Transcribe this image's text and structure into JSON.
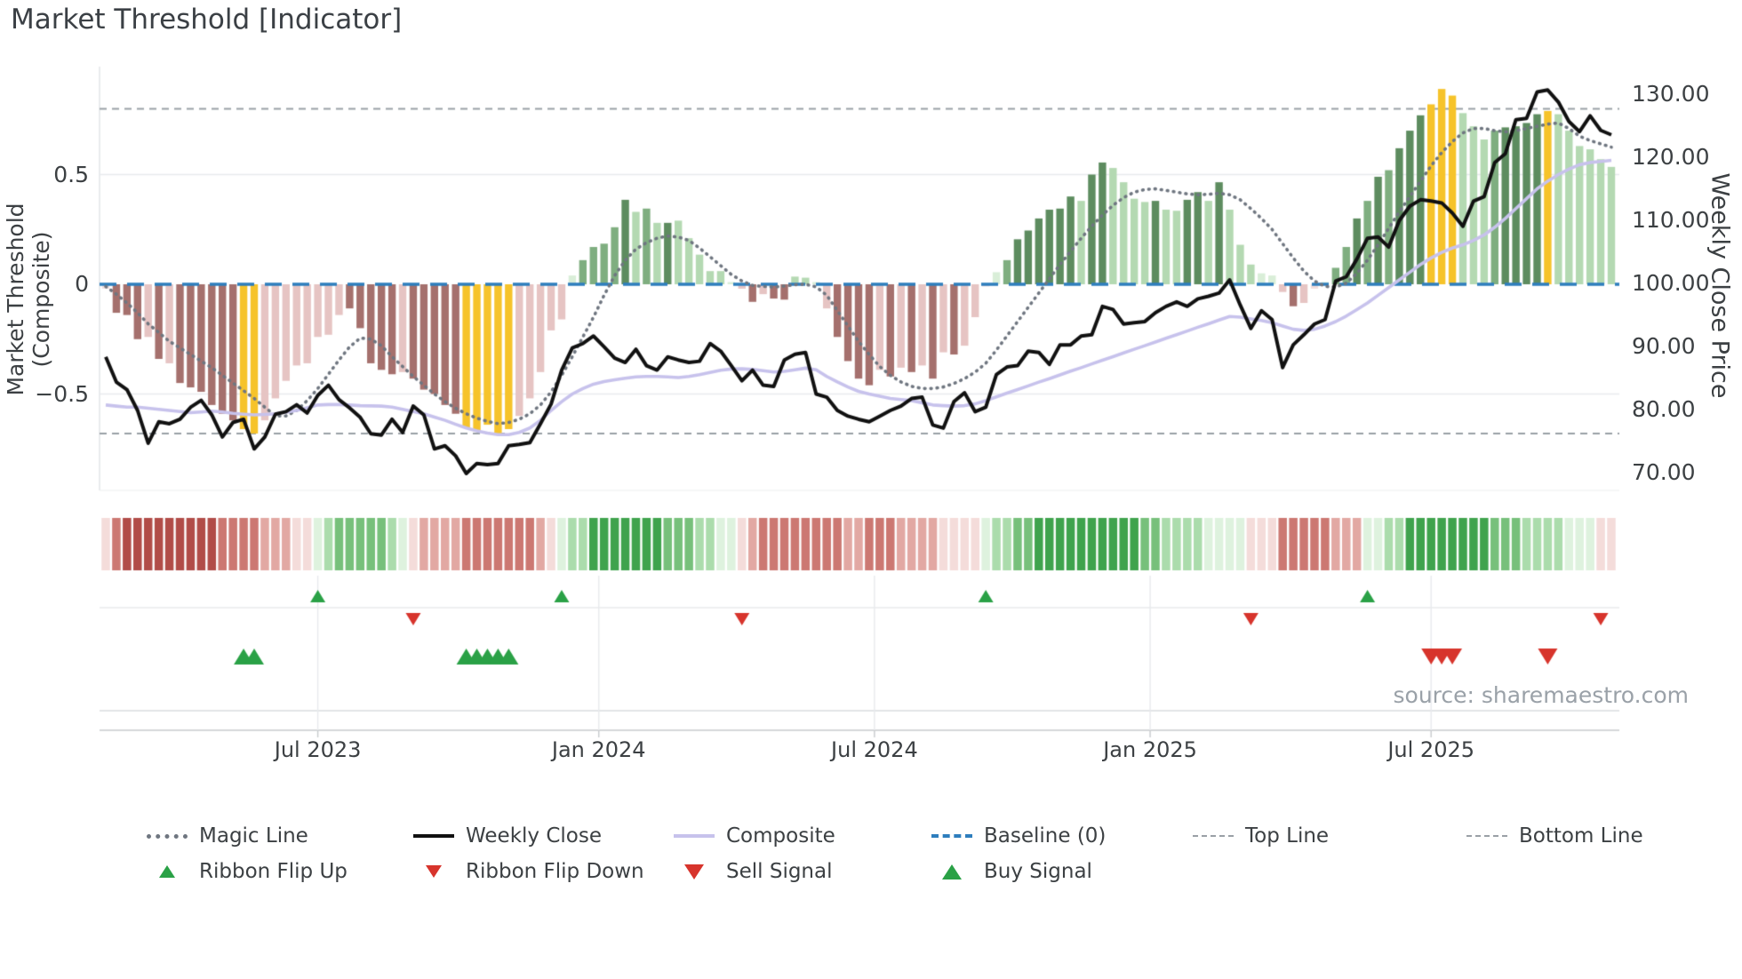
{
  "title": "Market Threshold [Indicator]",
  "source": "source: sharemaestro.com",
  "axes": {
    "left_label": "Market Threshold (Composite)",
    "right_label": "Weekly Close Price",
    "left_ticks": [
      {
        "value": 0.5,
        "label": "0.5"
      },
      {
        "value": 0.0,
        "label": "0"
      },
      {
        "value": -0.5,
        "label": "−0.5"
      }
    ],
    "right_ticks": [
      {
        "value": 130,
        "label": "130.00"
      },
      {
        "value": 120,
        "label": "120.00"
      },
      {
        "value": 110,
        "label": "110.00"
      },
      {
        "value": 100,
        "label": "100.00"
      },
      {
        "value": 90,
        "label": "90.00"
      },
      {
        "value": 80,
        "label": "80.00"
      },
      {
        "value": 70,
        "label": "70.00"
      }
    ],
    "x_ticks": [
      {
        "week": 20,
        "label": "Jul 2023"
      },
      {
        "week": 46.5,
        "label": "Jan 2024"
      },
      {
        "week": 72.5,
        "label": "Jul 2024"
      },
      {
        "week": 98.5,
        "label": "Jan 2025"
      },
      {
        "week": 125,
        "label": "Jul 2025"
      }
    ]
  },
  "legend": {
    "row1": [
      {
        "name": "magic-line",
        "label": "Magic Line",
        "swatch": "dotted-line",
        "color": "#6f7680"
      },
      {
        "name": "weekly-close",
        "label": "Weekly Close",
        "swatch": "solid-line",
        "color": "#111111"
      },
      {
        "name": "composite",
        "label": "Composite",
        "swatch": "solid-line",
        "color": "#c7c2ec"
      },
      {
        "name": "baseline",
        "label": "Baseline (0)",
        "swatch": "dashed-line",
        "color": "#2e7ebd"
      },
      {
        "name": "top-line",
        "label": "Top Line",
        "swatch": "dashes-small",
        "color": "#9aa0a6"
      },
      {
        "name": "bottom-line",
        "label": "Bottom Line",
        "swatch": "dashes-small",
        "color": "#9aa0a6"
      }
    ],
    "row2": [
      {
        "name": "ribbon-flip-up",
        "label": "Ribbon Flip Up",
        "swatch": "tri-up-small",
        "color": "#2aa146"
      },
      {
        "name": "ribbon-flip-down",
        "label": "Ribbon Flip Down",
        "swatch": "tri-down-small",
        "color": "#d7342c"
      },
      {
        "name": "sell-signal",
        "label": "Sell Signal",
        "swatch": "tri-down",
        "color": "#d7342c"
      },
      {
        "name": "buy-signal",
        "label": "Buy Signal",
        "swatch": "tri-up",
        "color": "#2aa146"
      }
    ]
  },
  "colors": {
    "bar_styles": {
      "d": "#a5706d",
      "l": "#e6c4c3",
      "p": "#f2dedd",
      "y": "#f6c32a",
      "G": "#5d8c5f",
      "g": "#7fae80",
      "lg": "#b4d9b2",
      "pg": "#d9eed8"
    },
    "ribbon_styles": {
      "R3": "#b14c48",
      "R2": "#cc7872",
      "R1": "#e2a8a3",
      "R0": "#f4dcda",
      "G3": "#3fa34d",
      "G2": "#77c07b",
      "G1": "#abdcac",
      "G0": "#def2de"
    },
    "weekly_close": "#111111",
    "composite_line": "#c7c2ec",
    "magic_line": "#6f7680",
    "baseline": "#2e7ebd",
    "threshold_lines": "#9aa0a6",
    "grid": "#e8eaed",
    "axis_line": "#c7cacd",
    "buy": "#2aa146",
    "sell": "#d7342c"
  },
  "chart_data": {
    "type": "bar",
    "subtype": "combo bar+line indicator panel, weekly data Feb 2023 - Nov 2025",
    "n_weeks": 143,
    "title": "Market Threshold [Indicator]",
    "xlabel": "",
    "ylabel_left": "Market Threshold (Composite)",
    "ylabel_right": "Weekly Close Price",
    "ylim_left": [
      -1.0,
      1.0
    ],
    "ylim_right": [
      60,
      140
    ],
    "grid": "horizontal light, vertical only in signal panel",
    "legend_position": "bottom, two rows",
    "thresholds": {
      "baseline": 0,
      "top_line": 0.8,
      "bottom_line": -0.68
    },
    "x_tick_labels": [
      "Jul 2023",
      "Jan 2024",
      "Jul 2024",
      "Jan 2025",
      "Jul 2025"
    ],
    "composite_bars": [
      -0.02,
      -0.13,
      -0.14,
      -0.25,
      -0.24,
      -0.34,
      -0.36,
      -0.45,
      -0.47,
      -0.49,
      -0.55,
      -0.59,
      -0.62,
      -0.66,
      -0.68,
      -0.62,
      -0.52,
      -0.44,
      -0.37,
      -0.36,
      -0.24,
      -0.23,
      -0.14,
      -0.11,
      -0.2,
      -0.36,
      -0.39,
      -0.41,
      -0.4,
      -0.43,
      -0.48,
      -0.5,
      -0.55,
      -0.59,
      -0.655,
      -0.67,
      -0.64,
      -0.68,
      -0.66,
      -0.6,
      -0.52,
      -0.4,
      -0.21,
      -0.16,
      0.04,
      0.11,
      0.17,
      0.185,
      0.26,
      0.385,
      0.33,
      0.345,
      0.28,
      0.28,
      0.29,
      0.21,
      0.135,
      0.06,
      0.06,
      0.01,
      -0.02,
      -0.08,
      -0.045,
      -0.065,
      -0.07,
      0.035,
      0.03,
      0.01,
      -0.11,
      -0.24,
      -0.35,
      -0.43,
      -0.46,
      -0.39,
      -0.42,
      -0.38,
      -0.4,
      -0.37,
      -0.43,
      -0.31,
      -0.32,
      -0.28,
      -0.15,
      -0.01,
      0.055,
      0.11,
      0.205,
      0.245,
      0.3,
      0.34,
      0.345,
      0.4,
      0.38,
      0.5,
      0.555,
      0.53,
      0.465,
      0.39,
      0.375,
      0.38,
      0.34,
      0.335,
      0.385,
      0.42,
      0.38,
      0.465,
      0.34,
      0.18,
      0.09,
      0.05,
      0.04,
      -0.035,
      -0.1,
      -0.085,
      -0.02,
      0.01,
      0.075,
      0.17,
      0.3,
      0.38,
      0.49,
      0.52,
      0.62,
      0.7,
      0.77,
      0.82,
      0.89,
      0.86,
      0.78,
      0.72,
      0.66,
      0.7,
      0.715,
      0.72,
      0.735,
      0.775,
      0.79,
      0.775,
      0.7,
      0.63,
      0.615,
      0.57,
      0.535
    ],
    "bar_styles": [
      "p",
      "d",
      "d",
      "d",
      "l",
      "d",
      "l",
      "d",
      "d",
      "d",
      "d",
      "d",
      "d",
      "y",
      "y",
      "l",
      "l",
      "l",
      "l",
      "l",
      "l",
      "l",
      "l",
      "d",
      "d",
      "d",
      "d",
      "d",
      "l",
      "d",
      "d",
      "d",
      "d",
      "d",
      "y",
      "y",
      "y",
      "y",
      "y",
      "l",
      "l",
      "l",
      "l",
      "l",
      "pg",
      "g",
      "g",
      "g",
      "g",
      "G",
      "lg",
      "g",
      "lg",
      "G",
      "lg",
      "lg",
      "lg",
      "lg",
      "lg",
      "pg",
      "l",
      "d",
      "l",
      "d",
      "d",
      "lg",
      "lg",
      "pg",
      "l",
      "d",
      "d",
      "d",
      "d",
      "l",
      "d",
      "l",
      "d",
      "l",
      "d",
      "l",
      "d",
      "l",
      "l",
      "p",
      "pg",
      "g",
      "G",
      "G",
      "G",
      "G",
      "G",
      "G",
      "lg",
      "G",
      "G",
      "lg",
      "lg",
      "lg",
      "lg",
      "G",
      "lg",
      "lg",
      "G",
      "G",
      "lg",
      "G",
      "lg",
      "lg",
      "lg",
      "pg",
      "pg",
      "l",
      "d",
      "l",
      "p",
      "pg",
      "g",
      "g",
      "G",
      "g",
      "G",
      "g",
      "G",
      "G",
      "G",
      "y",
      "y",
      "y",
      "lg",
      "lg",
      "lg",
      "g",
      "G",
      "G",
      "G",
      "G",
      "y",
      "lg",
      "lg",
      "lg",
      "lg",
      "lg",
      "lg"
    ],
    "weekly_close": [
      88.5,
      84.5,
      83.3,
      80.0,
      74.8,
      78.2,
      77.9,
      78.6,
      80.5,
      81.6,
      79.3,
      75.8,
      78.1,
      78.6,
      73.9,
      75.8,
      79.4,
      79.8,
      80.9,
      79.6,
      82.4,
      84.0,
      81.7,
      80.4,
      78.9,
      76.3,
      76.1,
      78.6,
      76.5,
      80.7,
      79.3,
      73.9,
      74.4,
      72.8,
      70.0,
      71.6,
      71.4,
      71.6,
      74.4,
      74.6,
      74.9,
      77.9,
      81.0,
      86.4,
      89.9,
      90.6,
      91.8,
      90.1,
      88.3,
      87.6,
      89.7,
      87.1,
      86.4,
      88.5,
      88.0,
      87.6,
      87.8,
      90.6,
      89.4,
      87.1,
      84.7,
      86.4,
      84.0,
      83.8,
      88.0,
      88.9,
      89.2,
      82.6,
      82.1,
      80.0,
      79.1,
      78.6,
      78.2,
      79.1,
      80.0,
      80.7,
      81.9,
      82.1,
      77.7,
      77.2,
      81.4,
      82.8,
      79.8,
      80.5,
      85.7,
      86.9,
      87.1,
      89.4,
      89.2,
      87.3,
      90.4,
      90.4,
      91.8,
      92.0,
      96.5,
      96.0,
      93.7,
      93.9,
      94.1,
      95.5,
      96.5,
      97.2,
      96.5,
      97.7,
      98.1,
      98.6,
      100.7,
      96.7,
      93.0,
      95.8,
      94.4,
      86.8,
      90.4,
      92.0,
      93.7,
      94.4,
      100.5,
      101.2,
      104.0,
      107.3,
      107.5,
      105.9,
      110.1,
      112.4,
      113.4,
      113.2,
      112.9,
      111.3,
      109.2,
      113.2,
      113.9,
      119.3,
      120.7,
      126.1,
      126.3,
      130.5,
      130.8,
      128.9,
      125.8,
      124.2,
      126.7,
      124.4,
      123.7
    ],
    "composite_line": [
      -0.55,
      -0.555,
      -0.56,
      -0.56,
      -0.565,
      -0.57,
      -0.575,
      -0.58,
      -0.585,
      -0.582,
      -0.578,
      -0.582,
      -0.588,
      -0.592,
      -0.595,
      -0.593,
      -0.59,
      -0.583,
      -0.575,
      -0.563,
      -0.55,
      -0.548,
      -0.548,
      -0.55,
      -0.553,
      -0.554,
      -0.555,
      -0.56,
      -0.57,
      -0.58,
      -0.59,
      -0.605,
      -0.62,
      -0.638,
      -0.655,
      -0.668,
      -0.678,
      -0.685,
      -0.685,
      -0.675,
      -0.655,
      -0.62,
      -0.575,
      -0.535,
      -0.5,
      -0.475,
      -0.455,
      -0.443,
      -0.435,
      -0.428,
      -0.422,
      -0.42,
      -0.42,
      -0.422,
      -0.425,
      -0.42,
      -0.412,
      -0.402,
      -0.392,
      -0.386,
      -0.385,
      -0.388,
      -0.394,
      -0.4,
      -0.397,
      -0.39,
      -0.382,
      -0.39,
      -0.42,
      -0.445,
      -0.468,
      -0.488,
      -0.5,
      -0.51,
      -0.52,
      -0.525,
      -0.53,
      -0.54,
      -0.55,
      -0.553,
      -0.555,
      -0.553,
      -0.545,
      -0.53,
      -0.513,
      -0.496,
      -0.48,
      -0.463,
      -0.446,
      -0.43,
      -0.413,
      -0.396,
      -0.38,
      -0.363,
      -0.346,
      -0.33,
      -0.313,
      -0.296,
      -0.28,
      -0.263,
      -0.246,
      -0.23,
      -0.213,
      -0.196,
      -0.18,
      -0.163,
      -0.147,
      -0.15,
      -0.158,
      -0.165,
      -0.175,
      -0.19,
      -0.205,
      -0.21,
      -0.205,
      -0.19,
      -0.17,
      -0.145,
      -0.115,
      -0.085,
      -0.05,
      -0.015,
      0.02,
      0.055,
      0.09,
      0.12,
      0.145,
      0.165,
      0.18,
      0.2,
      0.225,
      0.26,
      0.3,
      0.345,
      0.39,
      0.435,
      0.47,
      0.5,
      0.525,
      0.545,
      0.555,
      0.56,
      0.565
    ],
    "magic_line": [
      -0.01,
      -0.045,
      -0.085,
      -0.13,
      -0.18,
      -0.22,
      -0.26,
      -0.29,
      -0.32,
      -0.35,
      -0.38,
      -0.415,
      -0.45,
      -0.485,
      -0.52,
      -0.56,
      -0.6,
      -0.6,
      -0.575,
      -0.53,
      -0.475,
      -0.41,
      -0.345,
      -0.285,
      -0.245,
      -0.25,
      -0.28,
      -0.33,
      -0.375,
      -0.42,
      -0.46,
      -0.5,
      -0.535,
      -0.565,
      -0.59,
      -0.61,
      -0.625,
      -0.635,
      -0.63,
      -0.615,
      -0.59,
      -0.55,
      -0.49,
      -0.415,
      -0.33,
      -0.24,
      -0.15,
      -0.05,
      0.04,
      0.11,
      0.16,
      0.19,
      0.21,
      0.22,
      0.215,
      0.2,
      0.165,
      0.125,
      0.085,
      0.045,
      0.015,
      -0.005,
      -0.01,
      -0.012,
      -0.008,
      -0.002,
      0.0,
      -0.012,
      -0.05,
      -0.12,
      -0.19,
      -0.26,
      -0.32,
      -0.375,
      -0.415,
      -0.445,
      -0.465,
      -0.475,
      -0.475,
      -0.468,
      -0.452,
      -0.43,
      -0.4,
      -0.36,
      -0.3,
      -0.235,
      -0.17,
      -0.105,
      -0.04,
      0.025,
      0.09,
      0.15,
      0.21,
      0.265,
      0.315,
      0.36,
      0.395,
      0.42,
      0.432,
      0.435,
      0.428,
      0.42,
      0.412,
      0.408,
      0.41,
      0.415,
      0.408,
      0.385,
      0.345,
      0.3,
      0.25,
      0.185,
      0.12,
      0.06,
      0.015,
      -0.01,
      -0.012,
      0.005,
      0.05,
      0.11,
      0.18,
      0.255,
      0.33,
      0.4,
      0.47,
      0.54,
      0.6,
      0.65,
      0.69,
      0.71,
      0.71,
      0.7,
      0.695,
      0.7,
      0.71,
      0.72,
      0.73,
      0.735,
      0.71,
      0.675,
      0.655,
      0.64,
      0.625
    ],
    "ribbon": [
      "R0",
      "R2",
      "R3",
      "R3",
      "R3",
      "R3",
      "R3",
      "R3",
      "R3",
      "R3",
      "R3",
      "R2",
      "R2",
      "R2",
      "R2",
      "R1",
      "R1",
      "R1",
      "R0",
      "R0",
      "G0",
      "G1",
      "G2",
      "G2",
      "G2",
      "G2",
      "G2",
      "G1",
      "G0",
      "R0",
      "R1",
      "R1",
      "R1",
      "R1",
      "R2",
      "R2",
      "R2",
      "R2",
      "R2",
      "R2",
      "R2",
      "R1",
      "R0",
      "G0",
      "G1",
      "G1",
      "G3",
      "G3",
      "G3",
      "G3",
      "G3",
      "G3",
      "G3",
      "G2",
      "G2",
      "G2",
      "G1",
      "G1",
      "G0",
      "G0",
      "R0",
      "R1",
      "R2",
      "R2",
      "R2",
      "R2",
      "R2",
      "R2",
      "R2",
      "R2",
      "R1",
      "R1",
      "R2",
      "R2",
      "R2",
      "R1",
      "R1",
      "R1",
      "R1",
      "R0",
      "R0",
      "R0",
      "R0",
      "G0",
      "G1",
      "G1",
      "G2",
      "G2",
      "G3",
      "G3",
      "G3",
      "G3",
      "G3",
      "G3",
      "G3",
      "G3",
      "G3",
      "G3",
      "G2",
      "G2",
      "G1",
      "G1",
      "G1",
      "G1",
      "G0",
      "G0",
      "G0",
      "G0",
      "R0",
      "R0",
      "R0",
      "R2",
      "R2",
      "R2",
      "R2",
      "R2",
      "R1",
      "R1",
      "R1",
      "G0",
      "G0",
      "G1",
      "G1",
      "G3",
      "G3",
      "G3",
      "G3",
      "G3",
      "G3",
      "G3",
      "G3",
      "G2",
      "G2",
      "G2",
      "G1",
      "G1",
      "G1",
      "G1",
      "G0",
      "G0",
      "G0",
      "R0",
      "R0"
    ],
    "signals": {
      "ribbon_flip_up_weeks": [
        20,
        43,
        83,
        119
      ],
      "ribbon_flip_down_weeks": [
        29,
        60,
        108,
        141
      ],
      "buy_weeks": [
        13,
        14,
        34,
        35,
        36,
        37,
        38
      ],
      "sell_weeks": [
        125,
        126,
        127,
        136
      ]
    }
  }
}
